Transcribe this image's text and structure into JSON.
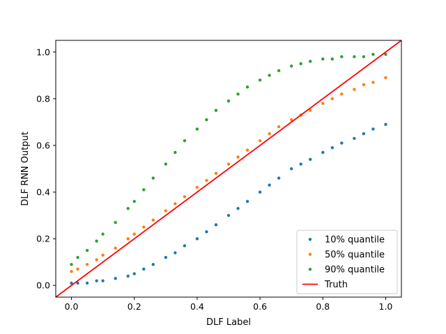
{
  "chart_data": {
    "type": "scatter",
    "title": "",
    "xlabel": "DLF Label",
    "ylabel": "DLF RNN Output",
    "xlim": [
      -0.05,
      1.05
    ],
    "ylim": [
      -0.05,
      1.05
    ],
    "xticks": [
      0.0,
      0.2,
      0.4,
      0.6,
      0.8,
      1.0
    ],
    "yticks": [
      0.0,
      0.2,
      0.4,
      0.6,
      0.8,
      1.0
    ],
    "xtick_labels": [
      "0.0",
      "0.2",
      "0.4",
      "0.6",
      "0.8",
      "1.0"
    ],
    "ytick_labels": [
      "0.0",
      "0.2",
      "0.4",
      "0.6",
      "0.8",
      "1.0"
    ],
    "grid": false,
    "legend_position": "lower-right",
    "series": [
      {
        "name": "10% quantile",
        "color": "#1f77b4",
        "marker": "dot",
        "x": [
          0.0,
          0.02,
          0.05,
          0.08,
          0.1,
          0.14,
          0.18,
          0.2,
          0.23,
          0.26,
          0.3,
          0.33,
          0.36,
          0.4,
          0.43,
          0.46,
          0.5,
          0.53,
          0.56,
          0.6,
          0.63,
          0.66,
          0.7,
          0.73,
          0.76,
          0.8,
          0.83,
          0.86,
          0.9,
          0.93,
          0.96,
          1.0
        ],
        "y": [
          0.01,
          0.01,
          0.01,
          0.02,
          0.02,
          0.03,
          0.04,
          0.05,
          0.07,
          0.09,
          0.12,
          0.14,
          0.17,
          0.2,
          0.23,
          0.26,
          0.3,
          0.33,
          0.36,
          0.4,
          0.43,
          0.46,
          0.5,
          0.52,
          0.54,
          0.57,
          0.59,
          0.61,
          0.63,
          0.65,
          0.67,
          0.69
        ]
      },
      {
        "name": "50% quantile",
        "color": "#ff7f0e",
        "marker": "dot",
        "x": [
          0.0,
          0.02,
          0.05,
          0.08,
          0.1,
          0.14,
          0.18,
          0.2,
          0.23,
          0.26,
          0.3,
          0.33,
          0.36,
          0.4,
          0.43,
          0.46,
          0.5,
          0.53,
          0.56,
          0.6,
          0.63,
          0.66,
          0.7,
          0.73,
          0.76,
          0.8,
          0.83,
          0.86,
          0.9,
          0.93,
          0.96,
          1.0
        ],
        "y": [
          0.06,
          0.07,
          0.09,
          0.11,
          0.13,
          0.16,
          0.2,
          0.22,
          0.25,
          0.28,
          0.32,
          0.35,
          0.38,
          0.42,
          0.45,
          0.48,
          0.52,
          0.55,
          0.58,
          0.62,
          0.65,
          0.68,
          0.71,
          0.73,
          0.75,
          0.78,
          0.8,
          0.82,
          0.84,
          0.86,
          0.87,
          0.89
        ]
      },
      {
        "name": "90% quantile",
        "color": "#2ca02c",
        "marker": "dot",
        "x": [
          0.0,
          0.02,
          0.05,
          0.08,
          0.1,
          0.14,
          0.18,
          0.2,
          0.23,
          0.26,
          0.3,
          0.33,
          0.36,
          0.4,
          0.43,
          0.46,
          0.5,
          0.53,
          0.56,
          0.6,
          0.63,
          0.66,
          0.7,
          0.73,
          0.76,
          0.8,
          0.83,
          0.86,
          0.9,
          0.93,
          0.96,
          1.0
        ],
        "y": [
          0.09,
          0.12,
          0.15,
          0.19,
          0.22,
          0.27,
          0.33,
          0.36,
          0.41,
          0.46,
          0.52,
          0.57,
          0.62,
          0.67,
          0.71,
          0.75,
          0.79,
          0.82,
          0.85,
          0.88,
          0.9,
          0.92,
          0.94,
          0.95,
          0.96,
          0.97,
          0.97,
          0.98,
          0.98,
          0.98,
          0.99,
          0.99
        ]
      },
      {
        "name": "Truth",
        "color": "#ff0000",
        "marker": "line",
        "x": [
          -0.05,
          1.05
        ],
        "y": [
          -0.05,
          1.05
        ]
      }
    ]
  }
}
